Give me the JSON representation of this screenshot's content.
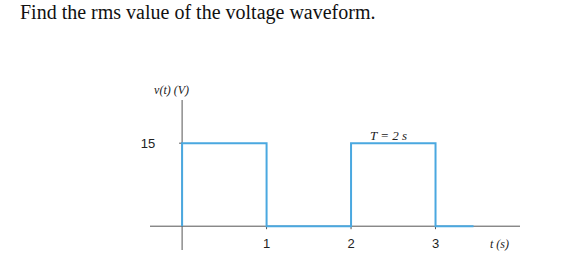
{
  "chart_data": {
    "type": "line",
    "title": "Find the rms value of the voltage waveform.",
    "y_label": "v(t) (V)",
    "x_label": "t (s)",
    "annotation": "T = 2 s",
    "x": [
      0,
      0,
      1,
      1,
      2,
      2,
      3,
      3,
      3.45
    ],
    "values": [
      0,
      15,
      15,
      0,
      0,
      15,
      15,
      0,
      0
    ],
    "color": "#4aa8e0",
    "xlim": [
      -0.38,
      4
    ],
    "ylim": [
      -4.3,
      22.8
    ],
    "xticks": [
      1,
      2,
      3
    ],
    "yticks": [
      15
    ],
    "grid": false
  }
}
